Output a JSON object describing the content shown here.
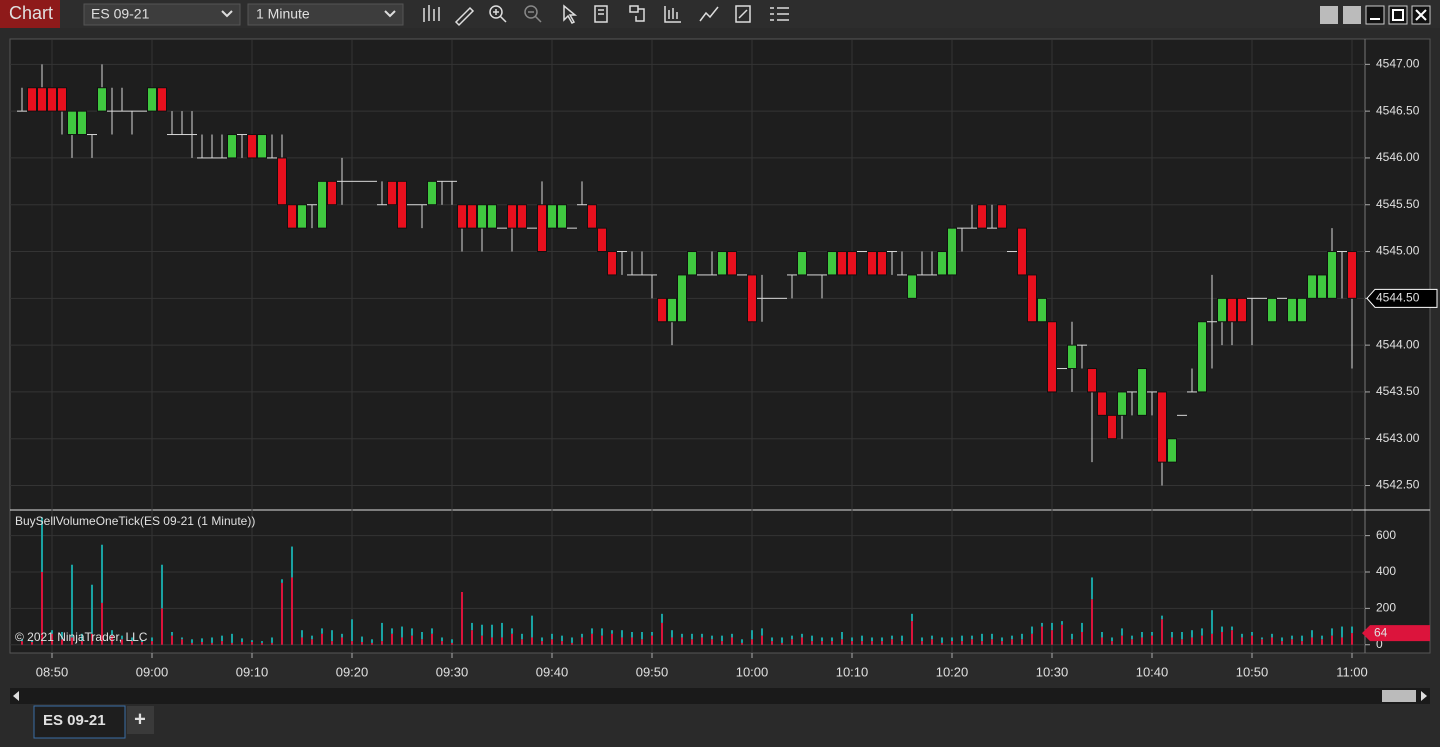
{
  "header": {
    "title": "Chart",
    "instrument": "ES 09-21",
    "interval": "1 Minute"
  },
  "watermark": "© 2021 NinjaTrader, LLC",
  "chart_data": [
    {
      "type": "candlestick",
      "categories": [
        null,
        null,
        null,
        "08:50",
        null,
        null,
        null,
        null,
        null,
        null,
        null,
        null,
        null,
        "09:00",
        null,
        null,
        null,
        null,
        null,
        null,
        null,
        null,
        null,
        "09:10",
        null,
        null,
        null,
        null,
        null,
        null,
        null,
        null,
        null,
        "09:20",
        null,
        null,
        null,
        null,
        null,
        null,
        null,
        null,
        null,
        "09:30",
        null,
        null,
        null,
        null,
        null,
        null,
        null,
        null,
        null,
        "09:40",
        null,
        null,
        null,
        null,
        null,
        null,
        null,
        null,
        null,
        "09:50",
        null,
        null,
        null,
        null,
        null,
        null,
        null,
        null,
        null,
        "10:00",
        null,
        null,
        null,
        null,
        null,
        null,
        null,
        null,
        null,
        "10:10",
        null,
        null,
        null,
        null,
        null,
        null,
        null,
        null,
        null,
        "10:20",
        null,
        null,
        null,
        null,
        null,
        null,
        null,
        null,
        null,
        "10:30",
        null,
        null,
        null,
        null,
        null,
        null,
        null,
        null,
        null,
        "10:40",
        null,
        null,
        null,
        null,
        null,
        null,
        null,
        null,
        null,
        "10:50",
        null,
        null,
        null,
        null,
        null,
        null,
        null,
        null,
        null,
        "11:00"
      ],
      "open": [
        4546.5,
        4546.75,
        4546.75,
        4546.75,
        4546.75,
        4546.25,
        4546.25,
        4546.25,
        4546.5,
        4546.5,
        4546.5,
        4546.5,
        4546.5,
        4546.5,
        4546.75,
        4546.25,
        4546.25,
        4546.25,
        4546,
        4546,
        4546,
        4546,
        4546.25,
        4546.25,
        4546,
        4546,
        4546,
        4545.5,
        4545.25,
        4545.5,
        4545.25,
        4545.75,
        4545.75,
        4545.75,
        4545.75,
        4545.75,
        4545.5,
        4545.75,
        4545.75,
        4545.5,
        4545.5,
        4545.5,
        4545.75,
        4545.75,
        4545.5,
        4545.5,
        4545.25,
        4545.25,
        4545.25,
        4545.5,
        4545.5,
        4545.25,
        4545.5,
        4545.25,
        4545.25,
        4545.25,
        4545.5,
        4545.5,
        4545.25,
        4545,
        4545,
        4544.75,
        4544.75,
        4544.75,
        4544.5,
        4544.25,
        4544.25,
        4544.75,
        4544.75,
        4544.75,
        4544.75,
        4545,
        4544.75,
        4544.75,
        4544.5,
        4544.5,
        4544.5,
        4544.75,
        4544.75,
        4544.75,
        4544.75,
        4544.75,
        4545,
        4545,
        4545,
        4545,
        4545,
        4545,
        4544.75,
        4544.5,
        4544.75,
        4544.75,
        4544.75,
        4544.75,
        4545.25,
        4545.25,
        4545.5,
        4545.25,
        4545.5,
        4545,
        4545.25,
        4544.75,
        4544.25,
        4544.25,
        4543.75,
        4543.75,
        4544,
        4543.75,
        4543.5,
        4543.25,
        4543.25,
        4543.5,
        4543.25,
        4543.5,
        4543.5,
        4542.75,
        4543.25,
        4543.5,
        4543.5,
        4544.25,
        4544.25,
        4544.5,
        4544.5,
        4544.5,
        4544.5,
        4544.25,
        4544.5,
        4544.25,
        4544.25,
        4544.5,
        4544.5,
        4544.5,
        4545,
        4545
      ],
      "high": [
        4546.75,
        4546.75,
        4547,
        4546.75,
        4546.75,
        4546.5,
        4546.5,
        4546.25,
        4547,
        4546.75,
        4546.75,
        4546.5,
        4546.5,
        4546.75,
        4546.75,
        4546.5,
        4546.5,
        4546.5,
        4546.25,
        4546.25,
        4546.25,
        4546.25,
        4546.25,
        4546.25,
        4546.25,
        4546.25,
        4546.25,
        4545.5,
        4545.5,
        4545.5,
        4545.75,
        4545.75,
        4546,
        4545.75,
        4545.75,
        4545.75,
        4545.75,
        4545.75,
        4545.75,
        4545.5,
        4545.5,
        4545.75,
        4545.75,
        4545.75,
        4545.5,
        4545.5,
        4545.5,
        4545.5,
        4545.25,
        4545.5,
        4545.5,
        4545.25,
        4545.75,
        4545.5,
        4545.5,
        4545.25,
        4545.75,
        4545.5,
        4545.25,
        4545,
        4545,
        4545,
        4545,
        4544.75,
        4544.5,
        4544.5,
        4544.75,
        4545,
        4544.75,
        4545,
        4545,
        4545,
        4544.75,
        4544.75,
        4544.75,
        4544.5,
        4544.5,
        4544.75,
        4545,
        4544.75,
        4544.75,
        4545,
        4545,
        4545,
        4545,
        4545,
        4545,
        4545,
        4545,
        4544.75,
        4545,
        4545,
        4545,
        4545.25,
        4545.25,
        4545.5,
        4545.5,
        4545.5,
        4545.5,
        4545,
        4545.25,
        4544.75,
        4544.5,
        4544.25,
        4543.75,
        4544.25,
        4544,
        4543.75,
        4543.5,
        4543.25,
        4543.5,
        4543.5,
        4543.75,
        4543.5,
        4543.5,
        4543,
        4543.25,
        4543.75,
        4544.25,
        4544.75,
        4544.5,
        4544.5,
        4544.5,
        4544.5,
        4544.5,
        4544.5,
        4544.5,
        4544.5,
        4544.5,
        4544.75,
        4544.75,
        4545.25,
        4545,
        4545
      ],
      "low": [
        4546.5,
        4546.5,
        4546.5,
        4546.5,
        4546.25,
        4546,
        4546.25,
        4546,
        4546.5,
        4546.25,
        4546.5,
        4546.25,
        4546.5,
        4546.5,
        4546.5,
        4546.25,
        4546.25,
        4546,
        4546,
        4546,
        4546,
        4546,
        4546,
        4546,
        4546,
        4546,
        4545.5,
        4545.25,
        4545.25,
        4545.25,
        4545.25,
        4545.5,
        4545.5,
        4545.75,
        4545.75,
        4545.75,
        4545.5,
        4545.5,
        4545.25,
        4545.5,
        4545.25,
        4545.5,
        4545.5,
        4545.5,
        4545,
        4545.25,
        4545,
        4545.25,
        4545.25,
        4545,
        4545.25,
        4545.25,
        4545,
        4545.25,
        4545.25,
        4545.25,
        4545.5,
        4545.25,
        4545,
        4544.75,
        4544.75,
        4544.75,
        4544.75,
        4544.5,
        4544.25,
        4544,
        4544.25,
        4544.75,
        4544.75,
        4544.75,
        4544.75,
        4544.75,
        4544.75,
        4544.25,
        4544.25,
        4544.5,
        4544.5,
        4544.5,
        4544.75,
        4544.75,
        4544.5,
        4544.75,
        4544.75,
        4544.75,
        4545,
        4544.75,
        4544.75,
        4544.75,
        4544.75,
        4544.5,
        4544.75,
        4544.75,
        4544.75,
        4544.75,
        4545,
        4545.25,
        4545.25,
        4545.25,
        4545.25,
        4545,
        4544.75,
        4544.25,
        4544.25,
        4543.5,
        4543.75,
        4543.5,
        4543.75,
        4542.75,
        4543.25,
        4543,
        4543,
        4543.25,
        4543.25,
        4543.25,
        4542.5,
        4542.75,
        4543.25,
        4543.5,
        4543.5,
        4543.75,
        4544,
        4544,
        4544.25,
        4544,
        4544.5,
        4544.25,
        4544.5,
        4544.25,
        4544.25,
        4544.5,
        4544.5,
        4544.5,
        4544.5,
        4543.75
      ],
      "close": [
        4546.5,
        4546.5,
        4546.5,
        4546.5,
        4546.5,
        4546.5,
        4546.5,
        4546.25,
        4546.75,
        4546.5,
        4546.5,
        4546.5,
        4546.5,
        4546.75,
        4546.5,
        4546.25,
        4546.25,
        4546.25,
        4546,
        4546,
        4546,
        4546.25,
        4546.25,
        4546,
        4546.25,
        4546,
        4545.5,
        4545.25,
        4545.5,
        4545.5,
        4545.75,
        4545.5,
        4545.75,
        4545.75,
        4545.75,
        4545.75,
        4545.5,
        4545.5,
        4545.25,
        4545.5,
        4545.5,
        4545.75,
        4545.75,
        4545.75,
        4545.25,
        4545.25,
        4545.5,
        4545.5,
        4545.25,
        4545.25,
        4545.25,
        4545.25,
        4545,
        4545.5,
        4545.5,
        4545.25,
        4545.5,
        4545.25,
        4545,
        4544.75,
        4545,
        4544.75,
        4544.75,
        4544.75,
        4544.25,
        4544.5,
        4544.75,
        4545,
        4544.75,
        4544.75,
        4545,
        4544.75,
        4544.75,
        4544.25,
        4544.5,
        4544.5,
        4544.5,
        4544.75,
        4545,
        4544.75,
        4544.75,
        4545,
        4544.75,
        4544.75,
        4545,
        4544.75,
        4544.75,
        4545,
        4544.75,
        4544.75,
        4544.75,
        4544.75,
        4545,
        4545.25,
        4545.25,
        4545.25,
        4545.25,
        4545.25,
        4545.25,
        4545,
        4544.75,
        4544.25,
        4544.5,
        4543.5,
        4543.75,
        4544,
        4544,
        4543.5,
        4543.25,
        4543,
        4543.5,
        4543.5,
        4543.75,
        4543.5,
        4542.75,
        4543,
        4543.25,
        4543.5,
        4544.25,
        4544.25,
        4544.5,
        4544.25,
        4544.25,
        4544.5,
        4544.5,
        4544.5,
        4544.5,
        4544.5,
        4544.5,
        4544.75,
        4544.75,
        4545,
        4545,
        4544.5
      ],
      "up_color": "#40c840",
      "down_color": "#e8101e",
      "ylim": [
        4542.26,
        4547.26
      ],
      "yticks": [
        {
          "value": 4542.5,
          "label": "4542.50"
        },
        {
          "value": 4543,
          "label": "4543.00"
        },
        {
          "value": 4543.5,
          "label": "4543.50"
        },
        {
          "value": 4544,
          "label": "4544.00"
        },
        {
          "value": 4544.5,
          "label": "4544.50"
        },
        {
          "value": 4545,
          "label": "4545.00"
        },
        {
          "value": 4545.5,
          "label": "4545.50"
        },
        {
          "value": 4546,
          "label": "4546.00"
        },
        {
          "value": 4546.5,
          "label": "4546.50"
        },
        {
          "value": 4547,
          "label": "4547.00"
        }
      ],
      "grid": true
    },
    {
      "type": "bar",
      "stacked": true,
      "title": "BuySellVolumeOneTick(ES 09-21 (1 Minute))",
      "series": [
        {
          "color": "#dc143c",
          "values": [
            20,
            15,
            400,
            60,
            30,
            40,
            20,
            60,
            230,
            50,
            30,
            20,
            15,
            20,
            200,
            50,
            30,
            10,
            15,
            10,
            20,
            10,
            15,
            15,
            10,
            10,
            340,
            370,
            40,
            30,
            60,
            20,
            40,
            20,
            15,
            10,
            20,
            60,
            40,
            50,
            30,
            60,
            20,
            10,
            290,
            80,
            50,
            40,
            40,
            60,
            30,
            40,
            20,
            30,
            20,
            10,
            40,
            60,
            50,
            60,
            40,
            40,
            30,
            50,
            120,
            40,
            40,
            30,
            40,
            30,
            20,
            40,
            10,
            30,
            50,
            20,
            10,
            30,
            40,
            20,
            20,
            20,
            30,
            20,
            20,
            20,
            20,
            30,
            20,
            130,
            20,
            30,
            10,
            20,
            20,
            30,
            20,
            30,
            20,
            30,
            30,
            60,
            100,
            80,
            110,
            30,
            70,
            250,
            40,
            20,
            50,
            30,
            40,
            50,
            140,
            40,
            30,
            40,
            50,
            60,
            70,
            80,
            40,
            50,
            30,
            40,
            20,
            30,
            20,
            40,
            30,
            50,
            40,
            64
          ]
        },
        {
          "color": "#1aa3a3",
          "values": [
            10,
            10,
            300,
            20,
            40,
            400,
            40,
            270,
            320,
            30,
            20,
            20,
            10,
            20,
            240,
            20,
            10,
            20,
            20,
            30,
            30,
            50,
            20,
            10,
            10,
            30,
            20,
            170,
            40,
            20,
            30,
            60,
            20,
            120,
            30,
            20,
            100,
            30,
            60,
            40,
            40,
            30,
            20,
            20,
            0,
            40,
            60,
            70,
            80,
            30,
            30,
            120,
            20,
            30,
            30,
            30,
            20,
            30,
            40,
            20,
            40,
            30,
            40,
            20,
            50,
            40,
            20,
            30,
            20,
            20,
            30,
            20,
            20,
            50,
            40,
            20,
            30,
            20,
            20,
            30,
            20,
            20,
            40,
            20,
            30,
            20,
            20,
            20,
            30,
            40,
            20,
            20,
            30,
            20,
            30,
            20,
            40,
            30,
            20,
            20,
            30,
            40,
            20,
            40,
            20,
            30,
            50,
            120,
            30,
            20,
            40,
            20,
            30,
            20,
            20,
            30,
            40,
            40,
            40,
            130,
            30,
            20,
            20,
            20,
            10,
            20,
            20,
            20,
            30,
            40,
            20,
            40,
            60,
            36
          ]
        }
      ],
      "ylim": [
        -40,
        730
      ],
      "yticks": [
        0,
        200,
        400,
        600
      ],
      "grid": true
    }
  ],
  "footer": {
    "tab": "ES 09-21",
    "add": "+"
  }
}
